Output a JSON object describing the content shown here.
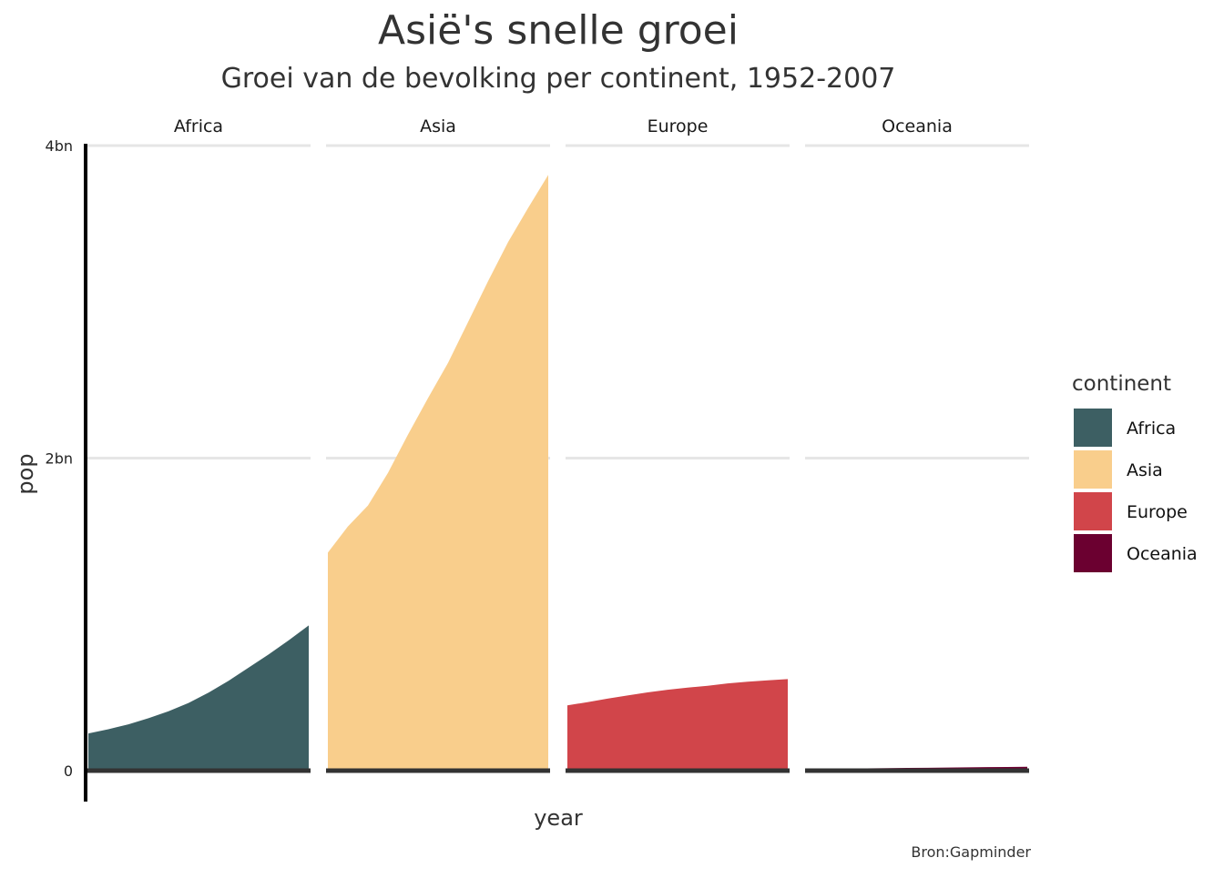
{
  "chart_data": {
    "type": "area",
    "title": "Asië's snelle groei",
    "subtitle": "Groei van de bevolking per continent, 1952-2007",
    "xlabel": "year",
    "ylabel": "pop",
    "caption": "Bron:Gapminder",
    "y_ticks": [
      {
        "value": 0,
        "label": "0"
      },
      {
        "value": 2000000000,
        "label": "2bn"
      },
      {
        "value": 4000000000,
        "label": "4bn"
      }
    ],
    "ylim": [
      0,
      4000000000
    ],
    "xlim": [
      1952,
      2007
    ],
    "x": [
      1952,
      1957,
      1962,
      1967,
      1972,
      1977,
      1982,
      1987,
      1992,
      1997,
      2002,
      2007
    ],
    "grid": "horizontal major lines",
    "layout": "facets in a row, shared y axis",
    "legend": {
      "title": "continent",
      "position": "right",
      "entries": [
        "Africa",
        "Asia",
        "Europe",
        "Oceania"
      ]
    },
    "series": [
      {
        "name": "Africa",
        "color": "#3d5f63",
        "values": [
          237640501,
          264837738,
          296516865,
          335289489,
          379879541,
          433061021,
          499348587,
          574834110,
          659081517,
          743832984,
          833723916,
          929539692
        ]
      },
      {
        "name": "Asia",
        "color": "#f9ce8c",
        "values": [
          1395357351,
          1562780599,
          1696357182,
          1905662900,
          2150972248,
          2384513556,
          2610135582,
          2871220762,
          3133292191,
          3383285500,
          3601802203,
          3811953827
        ]
      },
      {
        "name": "Europe",
        "color": "#d1454a",
        "values": [
          418120846,
          437890351,
          460355155,
          481178958,
          500635059,
          517164531,
          531266901,
          543094160,
          558142797,
          568944148,
          578223869,
          586098529
        ]
      },
      {
        "name": "Oceania",
        "color": "#6b0030",
        "values": [
          10686006,
          11941976,
          13283518,
          14600414,
          16106664,
          17239000,
          18394850,
          19574415,
          20919651,
          22241430,
          23454829,
          24549947
        ]
      }
    ]
  }
}
